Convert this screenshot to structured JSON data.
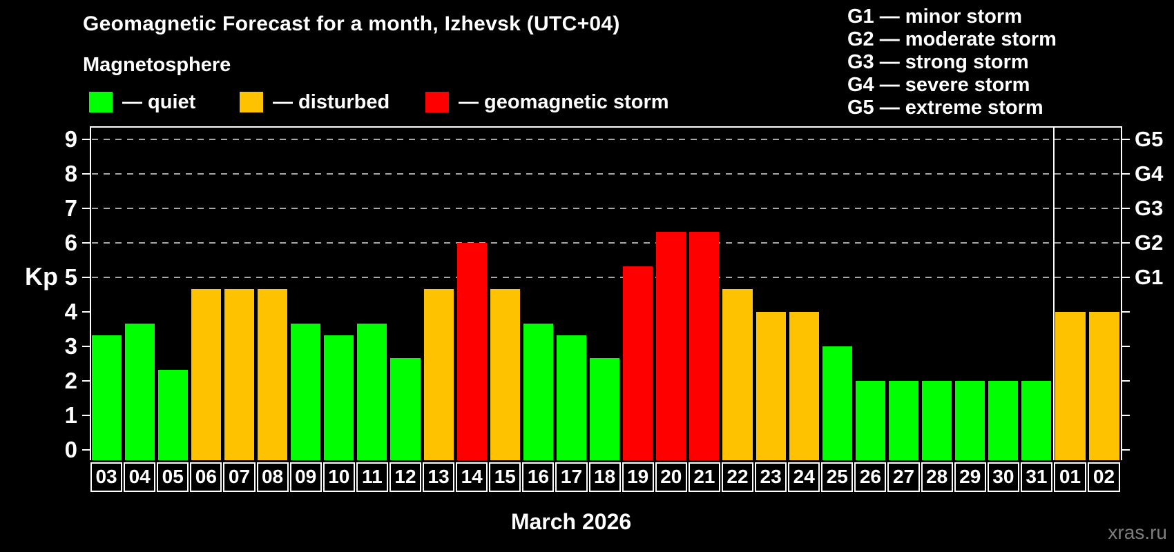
{
  "title": "Geomagnetic Forecast for a month, Izhevsk (UTC+04)",
  "subtitle": "Magnetosphere",
  "legend": {
    "items": [
      {
        "name": "quiet",
        "label": "— quiet",
        "color": "#00ff00"
      },
      {
        "name": "disturbed",
        "label": "— disturbed",
        "color": "#ffc200"
      },
      {
        "name": "storm",
        "label": "— geomagnetic storm",
        "color": "#ff0000"
      }
    ]
  },
  "g_legend": [
    "G1 — minor storm",
    "G2 — moderate storm",
    "G3 — strong storm",
    "G4 — severe storm",
    "G5 — extreme storm"
  ],
  "axis": {
    "y_label": "Kp",
    "y_ticks": [
      0,
      1,
      2,
      3,
      4,
      5,
      6,
      7,
      8,
      9
    ],
    "right_labels": [
      {
        "kp": 5,
        "label": "G1"
      },
      {
        "kp": 6,
        "label": "G2"
      },
      {
        "kp": 7,
        "label": "G3"
      },
      {
        "kp": 8,
        "label": "G4"
      },
      {
        "kp": 9,
        "label": "G5"
      }
    ],
    "x_label": "March 2026"
  },
  "watermark": "xras.ru",
  "chart_data": {
    "type": "bar",
    "title": "Geomagnetic Forecast for a month, Izhevsk (UTC+04)",
    "xlabel": "March 2026",
    "ylabel": "Kp",
    "ylim": [
      0,
      9.4
    ],
    "grid": "dashed horizontal at Kp 5-9 (G1-G5 levels)",
    "legend_position": "top",
    "gridlines_at": [
      5,
      6,
      7,
      8,
      9
    ],
    "categories": [
      "03",
      "04",
      "05",
      "06",
      "07",
      "08",
      "09",
      "10",
      "11",
      "12",
      "13",
      "14",
      "15",
      "16",
      "17",
      "18",
      "19",
      "20",
      "21",
      "22",
      "23",
      "24",
      "25",
      "26",
      "27",
      "28",
      "29",
      "30",
      "31",
      "01",
      "02"
    ],
    "values": [
      3.33,
      3.67,
      2.33,
      4.67,
      4.67,
      4.67,
      3.67,
      3.33,
      3.67,
      2.67,
      4.67,
      6,
      4.67,
      3.67,
      3.33,
      2.67,
      5.33,
      6.33,
      6.33,
      4.67,
      4,
      4,
      3,
      2,
      2,
      2,
      2,
      2,
      2,
      4,
      4
    ],
    "statuses": [
      "quiet",
      "quiet",
      "quiet",
      "disturbed",
      "disturbed",
      "disturbed",
      "quiet",
      "quiet",
      "quiet",
      "quiet",
      "disturbed",
      "storm",
      "disturbed",
      "quiet",
      "quiet",
      "quiet",
      "storm",
      "storm",
      "storm",
      "disturbed",
      "disturbed",
      "disturbed",
      "quiet",
      "quiet",
      "quiet",
      "quiet",
      "quiet",
      "quiet",
      "quiet",
      "disturbed",
      "disturbed"
    ],
    "month_split_after_index": 28,
    "colors": {
      "quiet": "#00ff00",
      "disturbed": "#ffc200",
      "storm": "#ff0000"
    }
  }
}
